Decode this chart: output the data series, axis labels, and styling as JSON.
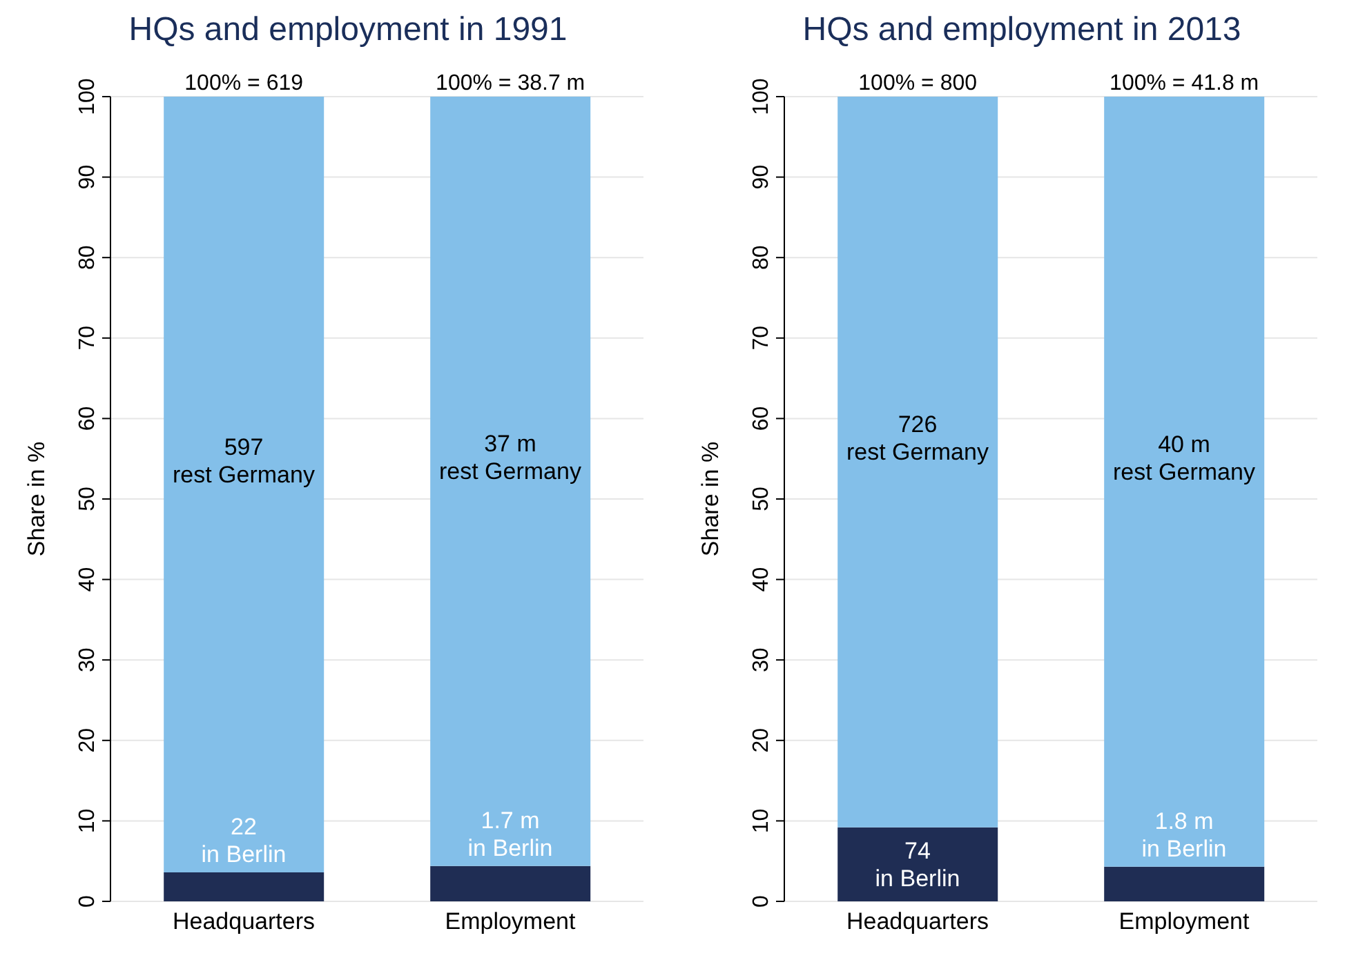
{
  "chart_data": [
    {
      "type": "bar",
      "title": "HQs and employment in 1991",
      "ylabel": "Share in %",
      "categories": [
        "Headquarters",
        "Employment"
      ],
      "stacked": true,
      "ylim": [
        0,
        100
      ],
      "yticks": [
        0,
        10,
        20,
        30,
        40,
        50,
        60,
        70,
        80,
        90,
        100
      ],
      "grid": "y",
      "legend": false,
      "totals": [
        "100% = 619",
        "100% = 38.7 m"
      ],
      "series": [
        {
          "color": "#1f2d54",
          "values": [
            3.6,
            4.4
          ]
        },
        {
          "color": "#83bfe9",
          "values": [
            96.4,
            95.6
          ]
        }
      ],
      "annotations": [
        "22\nin Berlin",
        "1.7 m\nin Berlin",
        "597\nrest Germany",
        "37 m\nrest Germany"
      ]
    },
    {
      "type": "bar",
      "title": "HQs and employment in 2013",
      "ylabel": "Share in %",
      "categories": [
        "Headquarters",
        "Employment"
      ],
      "stacked": true,
      "ylim": [
        0,
        100
      ],
      "yticks": [
        0,
        10,
        20,
        30,
        40,
        50,
        60,
        70,
        80,
        90,
        100
      ],
      "grid": "y",
      "legend": false,
      "totals": [
        "100% = 800",
        "100% = 41.8 m"
      ],
      "series": [
        {
          "color": "#1f2d54",
          "values": [
            9.2,
            4.3
          ]
        },
        {
          "color": "#83bfe9",
          "values": [
            90.8,
            95.7
          ]
        }
      ],
      "annotations": [
        "74\nin Berlin",
        "1.8 m\nin Berlin",
        "726\nrest Germany",
        "40 m\nrest Germany"
      ]
    }
  ]
}
